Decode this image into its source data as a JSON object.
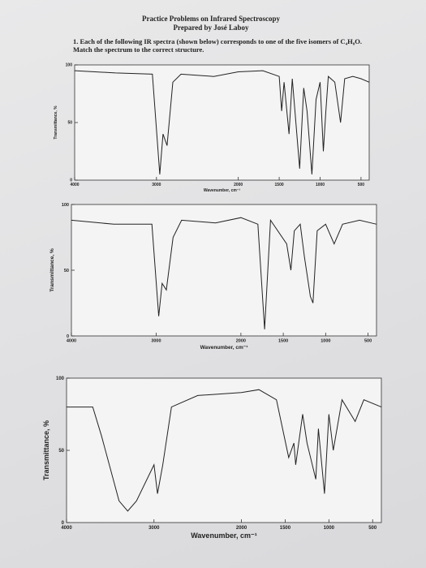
{
  "header": {
    "title": "Practice Problems on Infrared Spectroscopy",
    "subtitle": "Prepared by José Laboy",
    "question": "1. Each of the following IR spectra (shown below) corresponds to one of the five isomers of C₄H₈O. Match the spectrum to the correct structure."
  },
  "chart_data": [
    {
      "type": "line",
      "x_label": "Wavenumber, cm⁻¹",
      "y_label": "Transmittance, %",
      "color": "#222222",
      "x": [
        4000,
        3500,
        3050,
        2960,
        2920,
        2870,
        2800,
        2700,
        2300,
        2000,
        1700,
        1500,
        1470,
        1440,
        1380,
        1340,
        1250,
        1200,
        1160,
        1100,
        1050,
        1000,
        960,
        930,
        900,
        820,
        750,
        700,
        600,
        500,
        400
      ],
      "values": [
        95,
        93,
        92,
        5,
        40,
        30,
        85,
        92,
        90,
        94,
        95,
        90,
        60,
        85,
        40,
        88,
        10,
        80,
        60,
        5,
        70,
        85,
        25,
        60,
        90,
        85,
        50,
        88,
        90,
        88,
        85
      ],
      "xlim": [
        4000,
        400
      ],
      "ylim": [
        0,
        100
      ],
      "xticks": [
        4000,
        3000,
        2000,
        1500,
        1000,
        500
      ],
      "yticks": [
        0,
        50,
        100
      ]
    },
    {
      "type": "line",
      "x_label": "Wavenumber, cm⁻¹",
      "y_label": "Transmittance, %",
      "color": "#222222",
      "x": [
        4000,
        3500,
        3050,
        2970,
        2930,
        2880,
        2800,
        2700,
        2300,
        2000,
        1800,
        1720,
        1650,
        1460,
        1410,
        1370,
        1300,
        1250,
        1180,
        1150,
        1100,
        1000,
        900,
        800,
        600,
        400
      ],
      "values": [
        88,
        85,
        85,
        15,
        40,
        35,
        75,
        88,
        86,
        90,
        85,
        5,
        88,
        70,
        50,
        80,
        85,
        60,
        30,
        25,
        80,
        85,
        70,
        85,
        88,
        85
      ],
      "xlim": [
        4000,
        400
      ],
      "ylim": [
        0,
        100
      ],
      "xticks": [
        4000,
        3000,
        2000,
        1500,
        1000,
        500
      ],
      "yticks": [
        0,
        50,
        100
      ]
    },
    {
      "type": "line",
      "x_label": "Wavenumber, cm⁻¹",
      "y_label": "Transmittance, %",
      "color": "#222222",
      "x": [
        4000,
        3700,
        3600,
        3400,
        3300,
        3200,
        3000,
        2960,
        2900,
        2800,
        2500,
        2000,
        1800,
        1600,
        1460,
        1400,
        1380,
        1300,
        1250,
        1150,
        1120,
        1050,
        1000,
        950,
        850,
        700,
        600,
        400
      ],
      "values": [
        80,
        80,
        60,
        15,
        8,
        15,
        40,
        20,
        40,
        80,
        88,
        90,
        92,
        85,
        45,
        55,
        40,
        75,
        55,
        30,
        65,
        20,
        75,
        50,
        85,
        70,
        85,
        80
      ],
      "xlim": [
        4000,
        400
      ],
      "ylim": [
        0,
        100
      ],
      "xticks": [
        4000,
        3000,
        2000,
        1500,
        1000,
        500
      ],
      "yticks": [
        0,
        50,
        100
      ]
    }
  ]
}
